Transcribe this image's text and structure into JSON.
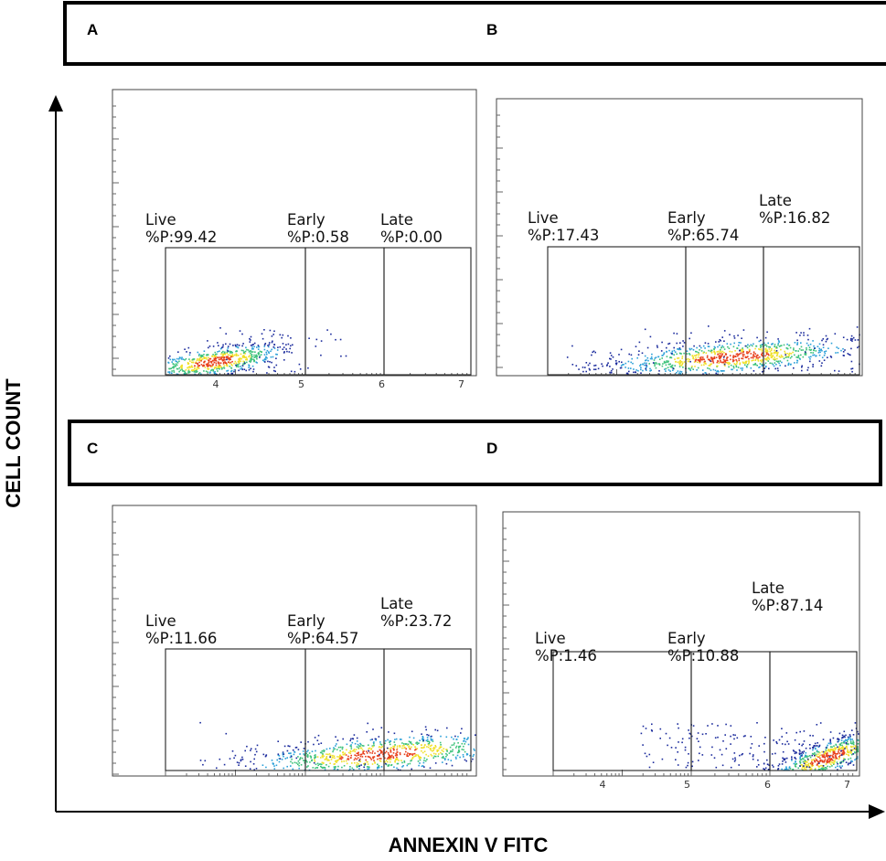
{
  "figure": {
    "y_axis_title": "CELL COUNT",
    "x_axis_title": "ANNEXIN V FITC",
    "row_headers": [
      {
        "letters": [
          "A",
          "B"
        ]
      },
      {
        "letters": [
          "C",
          "D"
        ]
      }
    ]
  },
  "colors": {
    "density_low": "#1a2a9c",
    "density_mid_low": "#2aa0d8",
    "density_mid": "#3cc27a",
    "density_high": "#f0e028",
    "density_peak": "#e8401c"
  },
  "chart_data": [
    {
      "panel": "A",
      "type": "scatter",
      "title": "",
      "xlabel": "ANNEXIN V FITC",
      "ylabel": "CELL COUNT",
      "tick_labels": [
        "4",
        "5",
        "6",
        "7"
      ],
      "gates": [
        {
          "name": "Live",
          "label": "Live",
          "value_text": "%P:99.42",
          "percent": 99.42
        },
        {
          "name": "Early",
          "label": "Early",
          "value_text": "%P:0.58",
          "percent": 0.58
        },
        {
          "name": "Late",
          "label": "Late",
          "value_text": "%P:0.00",
          "percent": 0.0
        }
      ]
    },
    {
      "panel": "B",
      "type": "scatter",
      "title": "",
      "xlabel": "ANNEXIN V FITC",
      "ylabel": "CELL COUNT",
      "gates": [
        {
          "name": "Live",
          "label": "Live",
          "value_text": "%P:17.43",
          "percent": 17.43
        },
        {
          "name": "Early",
          "label": "Early",
          "value_text": "%P:65.74",
          "percent": 65.74
        },
        {
          "name": "Late",
          "label": "Late",
          "value_text": "%P:16.82",
          "percent": 16.82
        }
      ]
    },
    {
      "panel": "C",
      "type": "scatter",
      "title": "",
      "xlabel": "ANNEXIN V FITC",
      "ylabel": "CELL COUNT",
      "gates": [
        {
          "name": "Live",
          "label": "Live",
          "value_text": "%P:11.66",
          "percent": 11.66
        },
        {
          "name": "Early",
          "label": "Early",
          "value_text": "%P:64.57",
          "percent": 64.57
        },
        {
          "name": "Late",
          "label": "Late",
          "value_text": "%P:23.72",
          "percent": 23.72
        }
      ]
    },
    {
      "panel": "D",
      "type": "scatter",
      "title": "",
      "xlabel": "ANNEXIN V FITC",
      "ylabel": "CELL COUNT",
      "tick_labels": [
        "4",
        "5",
        "6",
        "7"
      ],
      "gates": [
        {
          "name": "Live",
          "label": "Live",
          "value_text": "%P:1.46",
          "percent": 1.46
        },
        {
          "name": "Early",
          "label": "Early",
          "value_text": "%P:10.88",
          "percent": 10.88
        },
        {
          "name": "Late",
          "label": "Late",
          "value_text": "%P:87.14",
          "percent": 87.14
        }
      ]
    }
  ]
}
